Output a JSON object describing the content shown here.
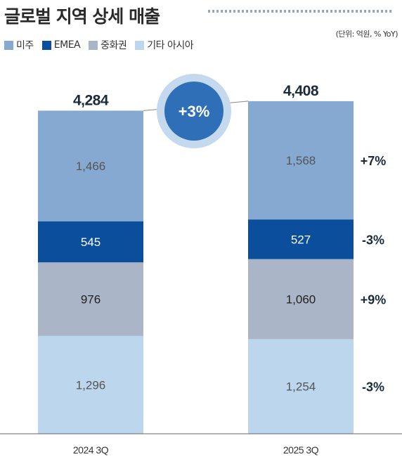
{
  "title": "글로벌 지역 상세 매출",
  "unit_note": "(단위: 억원, % YoY)",
  "growth_badge": "+3%",
  "chart_data": {
    "type": "bar",
    "stacked": true,
    "categories": [
      "2024 3Q",
      "2025 3Q"
    ],
    "totals": [
      "4,284",
      "4,408"
    ],
    "series": [
      {
        "name": "기타 아시아",
        "values": [
          1296,
          1254
        ],
        "labels": [
          "1,296",
          "1,254"
        ],
        "yoy": "-3%",
        "color": "#bcd6ee",
        "text_color": "#555555"
      },
      {
        "name": "중화권",
        "values": [
          976,
          1060
        ],
        "labels": [
          "976",
          "1,060"
        ],
        "yoy": "+9%",
        "color": "#aab5c7",
        "text_color": "#222222"
      },
      {
        "name": "EMEA",
        "values": [
          545,
          527
        ],
        "labels": [
          "545",
          "527"
        ],
        "yoy": "-3%",
        "color": "#0b4f9c",
        "text_color": "#ffffff"
      },
      {
        "name": "미주",
        "values": [
          1466,
          1568
        ],
        "labels": [
          "1,466",
          "1,568"
        ],
        "yoy": "+7%",
        "color": "#86a9d1",
        "text_color": "#555555"
      }
    ],
    "legend_order": [
      "미주",
      "EMEA",
      "중화권",
      "기타 아시아"
    ],
    "legend_position": "top-left",
    "ylim": [
      0,
      4408
    ],
    "grid": false,
    "colors": {
      "total_text": "#1a2a3a",
      "yoy_text": "#1a2a3a",
      "badge_fill": "#2f6fb8",
      "badge_ring": "#c5d9ee"
    }
  }
}
